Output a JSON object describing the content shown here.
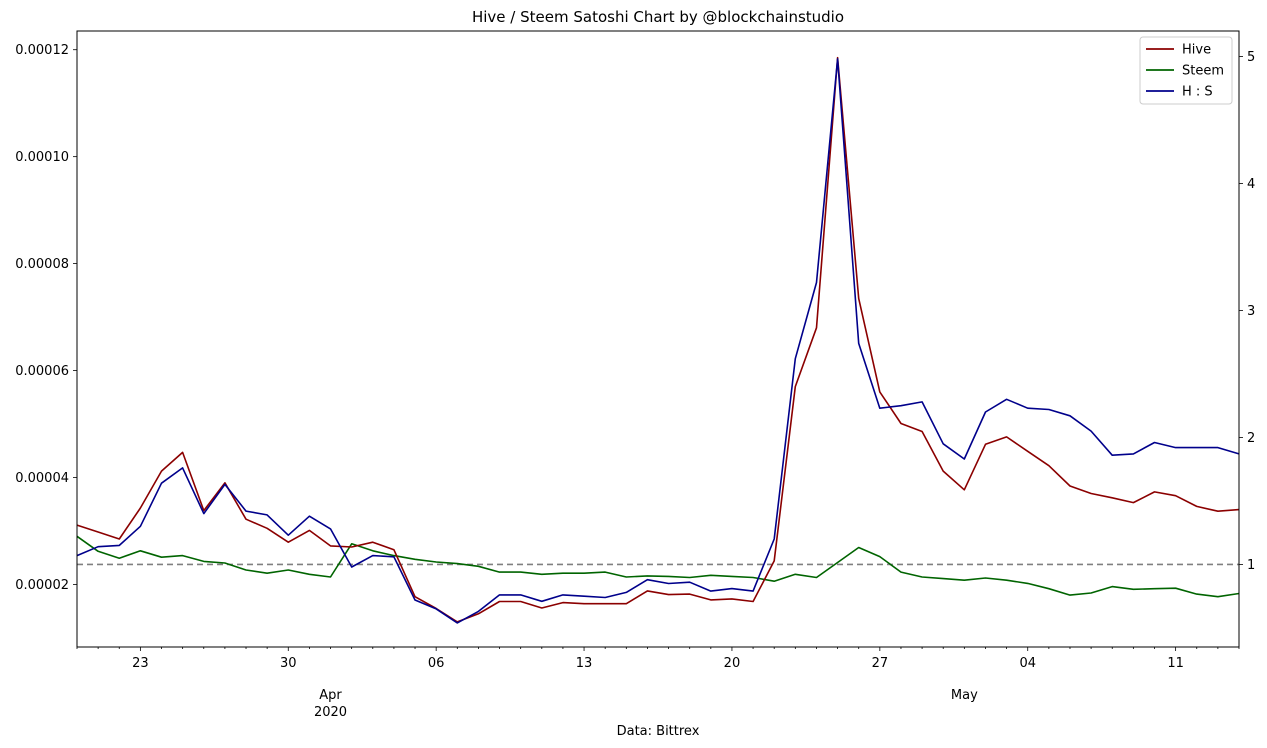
{
  "chart_data": {
    "type": "line",
    "title": "Hive / Steem Satoshi Chart by @blockchainstudio",
    "xlabel": "Data: Bittrex",
    "x_start": "2020-03-20",
    "x_ticks": [
      {
        "date": "2020-03-23",
        "label": "23"
      },
      {
        "date": "2020-03-30",
        "label": "30"
      },
      {
        "date": "2020-04-06",
        "label": "06"
      },
      {
        "date": "2020-04-13",
        "label": "13"
      },
      {
        "date": "2020-04-20",
        "label": "20"
      },
      {
        "date": "2020-04-27",
        "label": "27"
      },
      {
        "date": "2020-05-04",
        "label": "04"
      },
      {
        "date": "2020-05-11",
        "label": "11"
      }
    ],
    "x_month_labels": [
      {
        "date": "2020-04-01",
        "label": "Apr",
        "sublabel": "2020"
      },
      {
        "date": "2020-05-01",
        "label": "May",
        "sublabel": ""
      }
    ],
    "y_left": {
      "min": 8.3e-06,
      "max": 0.0001235,
      "ticks": [
        "0.00002",
        "0.00004",
        "0.00006",
        "0.00008",
        "0.00010",
        "0.00012"
      ]
    },
    "y_right": {
      "min": 0.35,
      "max": 5.2,
      "ticks": [
        "1",
        "2",
        "3",
        "4",
        "5"
      ]
    },
    "reference_line": {
      "axis": "right",
      "value": 1,
      "color": "#808080",
      "style": "dashed"
    },
    "legend_position": "top-right",
    "grid": false,
    "series": [
      {
        "name": "Hive",
        "axis": "left",
        "color": "#8b0000",
        "values": [
          3.11e-05,
          2.98e-05,
          2.85e-05,
          3.43e-05,
          4.12e-05,
          4.47e-05,
          3.38e-05,
          3.9e-05,
          3.22e-05,
          3.05e-05,
          2.79e-05,
          3.01e-05,
          2.72e-05,
          2.7e-05,
          2.79e-05,
          2.65e-05,
          1.77e-05,
          1.55e-05,
          1.3e-05,
          1.45e-05,
          1.68e-05,
          1.68e-05,
          1.56e-05,
          1.66e-05,
          1.64e-05,
          1.64e-05,
          1.64e-05,
          1.88e-05,
          1.81e-05,
          1.82e-05,
          1.71e-05,
          1.73e-05,
          1.68e-05,
          2.44e-05,
          5.7e-05,
          6.8e-05,
          0.0001185,
          7.35e-05,
          5.6e-05,
          5.01e-05,
          4.86e-05,
          4.12e-05,
          3.77e-05,
          4.62e-05,
          4.76e-05,
          4.49e-05,
          4.22e-05,
          3.84e-05,
          3.7e-05,
          3.62e-05,
          3.53e-05,
          3.73e-05,
          3.66e-05,
          3.46e-05,
          3.37e-05,
          3.4e-05
        ]
      },
      {
        "name": "Steem",
        "axis": "left",
        "color": "#006400",
        "values": [
          2.9e-05,
          2.62e-05,
          2.49e-05,
          2.63e-05,
          2.51e-05,
          2.54e-05,
          2.43e-05,
          2.4e-05,
          2.27e-05,
          2.21e-05,
          2.27e-05,
          2.19e-05,
          2.14e-05,
          2.76e-05,
          2.63e-05,
          2.54e-05,
          2.47e-05,
          2.42e-05,
          2.39e-05,
          2.34e-05,
          2.23e-05,
          2.23e-05,
          2.19e-05,
          2.21e-05,
          2.21e-05,
          2.23e-05,
          2.14e-05,
          2.16e-05,
          2.15e-05,
          2.13e-05,
          2.17e-05,
          2.15e-05,
          2.13e-05,
          2.06e-05,
          2.19e-05,
          2.13e-05,
          2.41e-05,
          2.69e-05,
          2.52e-05,
          2.23e-05,
          2.14e-05,
          2.11e-05,
          2.08e-05,
          2.12e-05,
          2.08e-05,
          2.02e-05,
          1.92e-05,
          1.8e-05,
          1.84e-05,
          1.96e-05,
          1.91e-05,
          1.92e-05,
          1.93e-05,
          1.82e-05,
          1.77e-05,
          1.83e-05
        ]
      },
      {
        "name": "H : S",
        "axis": "right",
        "color": "#00008b",
        "values": [
          1.07,
          1.14,
          1.15,
          1.3,
          1.64,
          1.76,
          1.4,
          1.63,
          1.42,
          1.39,
          1.23,
          1.38,
          1.28,
          0.98,
          1.07,
          1.06,
          0.72,
          0.65,
          0.54,
          0.63,
          0.76,
          0.76,
          0.71,
          0.76,
          0.75,
          0.74,
          0.78,
          0.88,
          0.85,
          0.86,
          0.79,
          0.81,
          0.79,
          1.2,
          2.62,
          3.22,
          4.98,
          2.74,
          2.23,
          2.25,
          2.28,
          1.95,
          1.83,
          2.2,
          2.3,
          2.23,
          2.22,
          2.17,
          2.05,
          1.86,
          1.87,
          1.96,
          1.92,
          1.92,
          1.92,
          1.87
        ]
      }
    ]
  }
}
